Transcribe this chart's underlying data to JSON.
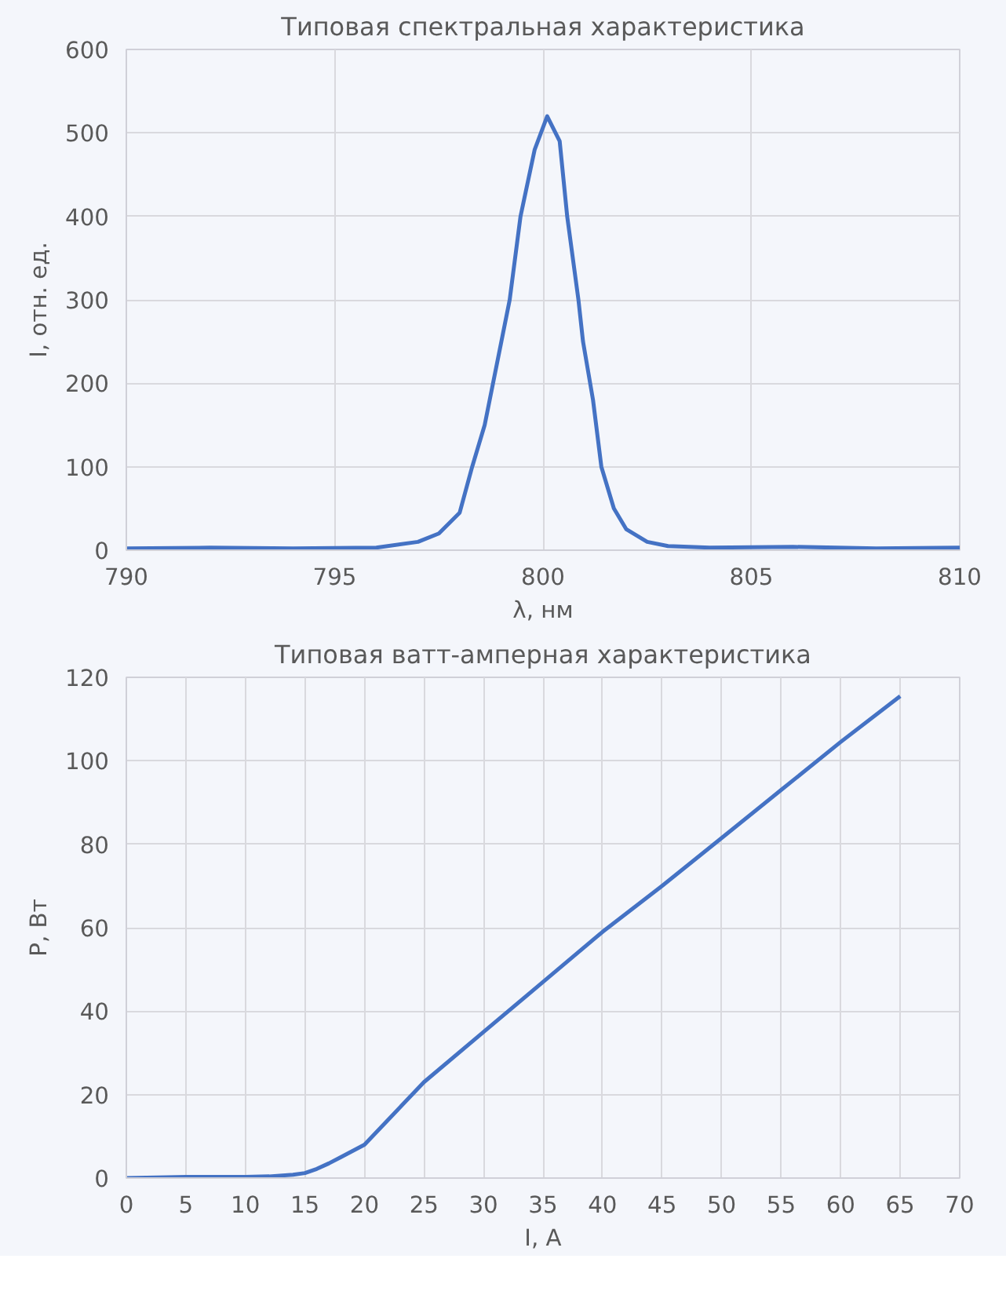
{
  "chart_data": [
    {
      "type": "line",
      "title": "Типовая спектральная характеристика",
      "xlabel": "λ, нм",
      "ylabel": "I, отн. ед.",
      "x": [
        790,
        792,
        794,
        796,
        797,
        797.5,
        798,
        798.3,
        798.6,
        799,
        799.2,
        799.46,
        799.8,
        800.1,
        800.4,
        800.58,
        800.85,
        800.96,
        801.2,
        801.4,
        801.7,
        802,
        802.5,
        803,
        804,
        806,
        808,
        810
      ],
      "series": [
        {
          "color": "#4472c4",
          "values": [
            2,
            3,
            2,
            3,
            10,
            20,
            45,
            100,
            150,
            250,
            300,
            400,
            480,
            520,
            490,
            400,
            300,
            250,
            180,
            100,
            50,
            25,
            10,
            5,
            3,
            4,
            2,
            3
          ]
        }
      ],
      "xlim": [
        790,
        810
      ],
      "xticks": [
        790,
        795,
        800,
        805,
        810
      ],
      "ylim": [
        0,
        600
      ],
      "yticks": [
        0,
        100,
        200,
        300,
        400,
        500,
        600
      ],
      "grid": true
    },
    {
      "type": "line",
      "title": "Типовая ватт-амперная характеристика",
      "xlabel": "I, А",
      "ylabel": "P, Вт",
      "x": [
        0,
        5,
        10,
        12,
        14,
        15,
        16,
        17,
        18,
        19,
        20,
        25,
        30,
        35,
        40,
        45,
        50,
        55,
        60,
        65
      ],
      "series": [
        {
          "color": "#4472c4",
          "values": [
            0,
            0.3,
            0.3,
            0.4,
            0.8,
            1.2,
            2.2,
            3.5,
            5,
            6.5,
            8,
            23,
            35,
            47,
            59,
            70,
            81.5,
            93,
            104.5,
            115.5
          ]
        }
      ],
      "xlim": [
        0,
        70
      ],
      "xticks": [
        0,
        5,
        10,
        15,
        20,
        25,
        30,
        35,
        40,
        45,
        50,
        55,
        60,
        65,
        70
      ],
      "ylim": [
        0,
        120
      ],
      "yticks": [
        0,
        20,
        40,
        60,
        80,
        100,
        120
      ],
      "grid": true
    }
  ]
}
